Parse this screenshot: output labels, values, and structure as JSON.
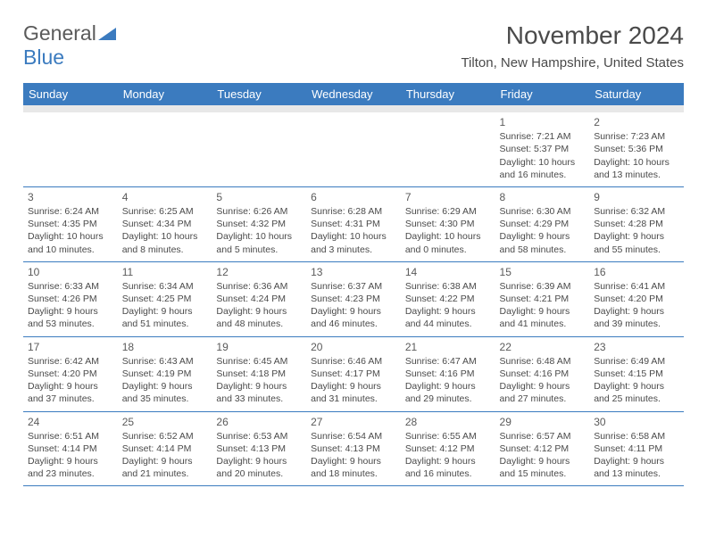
{
  "logo": {
    "word1": "General",
    "word2": "Blue",
    "triangle_color": "#3b7bbf"
  },
  "header": {
    "title": "November 2024",
    "location": "Tilton, New Hampshire, United States"
  },
  "colors": {
    "header_bg": "#3b7bbf",
    "header_text": "#ffffff",
    "body_text": "#4a4a4a",
    "divider": "#3b7bbf",
    "spacer": "#e8e8e8"
  },
  "day_headers": [
    "Sunday",
    "Monday",
    "Tuesday",
    "Wednesday",
    "Thursday",
    "Friday",
    "Saturday"
  ],
  "weeks": [
    [
      null,
      null,
      null,
      null,
      null,
      {
        "n": "1",
        "sunrise": "Sunrise: 7:21 AM",
        "sunset": "Sunset: 5:37 PM",
        "daylight": "Daylight: 10 hours and 16 minutes."
      },
      {
        "n": "2",
        "sunrise": "Sunrise: 7:23 AM",
        "sunset": "Sunset: 5:36 PM",
        "daylight": "Daylight: 10 hours and 13 minutes."
      }
    ],
    [
      {
        "n": "3",
        "sunrise": "Sunrise: 6:24 AM",
        "sunset": "Sunset: 4:35 PM",
        "daylight": "Daylight: 10 hours and 10 minutes."
      },
      {
        "n": "4",
        "sunrise": "Sunrise: 6:25 AM",
        "sunset": "Sunset: 4:34 PM",
        "daylight": "Daylight: 10 hours and 8 minutes."
      },
      {
        "n": "5",
        "sunrise": "Sunrise: 6:26 AM",
        "sunset": "Sunset: 4:32 PM",
        "daylight": "Daylight: 10 hours and 5 minutes."
      },
      {
        "n": "6",
        "sunrise": "Sunrise: 6:28 AM",
        "sunset": "Sunset: 4:31 PM",
        "daylight": "Daylight: 10 hours and 3 minutes."
      },
      {
        "n": "7",
        "sunrise": "Sunrise: 6:29 AM",
        "sunset": "Sunset: 4:30 PM",
        "daylight": "Daylight: 10 hours and 0 minutes."
      },
      {
        "n": "8",
        "sunrise": "Sunrise: 6:30 AM",
        "sunset": "Sunset: 4:29 PM",
        "daylight": "Daylight: 9 hours and 58 minutes."
      },
      {
        "n": "9",
        "sunrise": "Sunrise: 6:32 AM",
        "sunset": "Sunset: 4:28 PM",
        "daylight": "Daylight: 9 hours and 55 minutes."
      }
    ],
    [
      {
        "n": "10",
        "sunrise": "Sunrise: 6:33 AM",
        "sunset": "Sunset: 4:26 PM",
        "daylight": "Daylight: 9 hours and 53 minutes."
      },
      {
        "n": "11",
        "sunrise": "Sunrise: 6:34 AM",
        "sunset": "Sunset: 4:25 PM",
        "daylight": "Daylight: 9 hours and 51 minutes."
      },
      {
        "n": "12",
        "sunrise": "Sunrise: 6:36 AM",
        "sunset": "Sunset: 4:24 PM",
        "daylight": "Daylight: 9 hours and 48 minutes."
      },
      {
        "n": "13",
        "sunrise": "Sunrise: 6:37 AM",
        "sunset": "Sunset: 4:23 PM",
        "daylight": "Daylight: 9 hours and 46 minutes."
      },
      {
        "n": "14",
        "sunrise": "Sunrise: 6:38 AM",
        "sunset": "Sunset: 4:22 PM",
        "daylight": "Daylight: 9 hours and 44 minutes."
      },
      {
        "n": "15",
        "sunrise": "Sunrise: 6:39 AM",
        "sunset": "Sunset: 4:21 PM",
        "daylight": "Daylight: 9 hours and 41 minutes."
      },
      {
        "n": "16",
        "sunrise": "Sunrise: 6:41 AM",
        "sunset": "Sunset: 4:20 PM",
        "daylight": "Daylight: 9 hours and 39 minutes."
      }
    ],
    [
      {
        "n": "17",
        "sunrise": "Sunrise: 6:42 AM",
        "sunset": "Sunset: 4:20 PM",
        "daylight": "Daylight: 9 hours and 37 minutes."
      },
      {
        "n": "18",
        "sunrise": "Sunrise: 6:43 AM",
        "sunset": "Sunset: 4:19 PM",
        "daylight": "Daylight: 9 hours and 35 minutes."
      },
      {
        "n": "19",
        "sunrise": "Sunrise: 6:45 AM",
        "sunset": "Sunset: 4:18 PM",
        "daylight": "Daylight: 9 hours and 33 minutes."
      },
      {
        "n": "20",
        "sunrise": "Sunrise: 6:46 AM",
        "sunset": "Sunset: 4:17 PM",
        "daylight": "Daylight: 9 hours and 31 minutes."
      },
      {
        "n": "21",
        "sunrise": "Sunrise: 6:47 AM",
        "sunset": "Sunset: 4:16 PM",
        "daylight": "Daylight: 9 hours and 29 minutes."
      },
      {
        "n": "22",
        "sunrise": "Sunrise: 6:48 AM",
        "sunset": "Sunset: 4:16 PM",
        "daylight": "Daylight: 9 hours and 27 minutes."
      },
      {
        "n": "23",
        "sunrise": "Sunrise: 6:49 AM",
        "sunset": "Sunset: 4:15 PM",
        "daylight": "Daylight: 9 hours and 25 minutes."
      }
    ],
    [
      {
        "n": "24",
        "sunrise": "Sunrise: 6:51 AM",
        "sunset": "Sunset: 4:14 PM",
        "daylight": "Daylight: 9 hours and 23 minutes."
      },
      {
        "n": "25",
        "sunrise": "Sunrise: 6:52 AM",
        "sunset": "Sunset: 4:14 PM",
        "daylight": "Daylight: 9 hours and 21 minutes."
      },
      {
        "n": "26",
        "sunrise": "Sunrise: 6:53 AM",
        "sunset": "Sunset: 4:13 PM",
        "daylight": "Daylight: 9 hours and 20 minutes."
      },
      {
        "n": "27",
        "sunrise": "Sunrise: 6:54 AM",
        "sunset": "Sunset: 4:13 PM",
        "daylight": "Daylight: 9 hours and 18 minutes."
      },
      {
        "n": "28",
        "sunrise": "Sunrise: 6:55 AM",
        "sunset": "Sunset: 4:12 PM",
        "daylight": "Daylight: 9 hours and 16 minutes."
      },
      {
        "n": "29",
        "sunrise": "Sunrise: 6:57 AM",
        "sunset": "Sunset: 4:12 PM",
        "daylight": "Daylight: 9 hours and 15 minutes."
      },
      {
        "n": "30",
        "sunrise": "Sunrise: 6:58 AM",
        "sunset": "Sunset: 4:11 PM",
        "daylight": "Daylight: 9 hours and 13 minutes."
      }
    ]
  ]
}
